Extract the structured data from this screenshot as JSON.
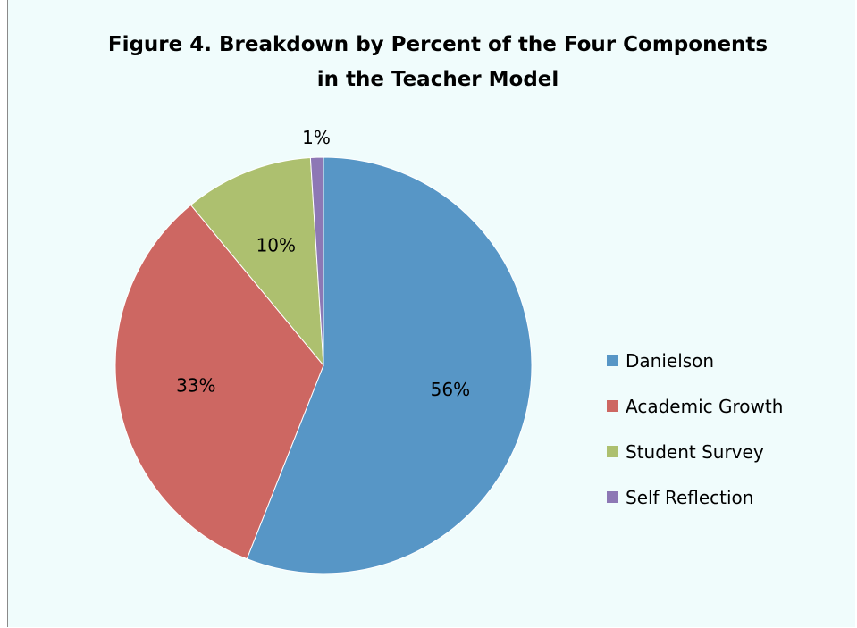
{
  "chart_data": {
    "type": "pie",
    "title_lines": [
      "Figure 4. Breakdown by Percent of the Four Components",
      "in the Teacher Model"
    ],
    "categories": [
      "Danielson",
      "Academic Growth",
      "Student Survey",
      "Self Reflection"
    ],
    "values": [
      56,
      33,
      10,
      1
    ],
    "data_labels": [
      "56%",
      "33%",
      "10%",
      "1%"
    ],
    "colors": [
      "#5796c6",
      "#cd6762",
      "#adc06f",
      "#8d78b5"
    ],
    "legend_position": "right",
    "background_color": "#f0fcfc"
  }
}
